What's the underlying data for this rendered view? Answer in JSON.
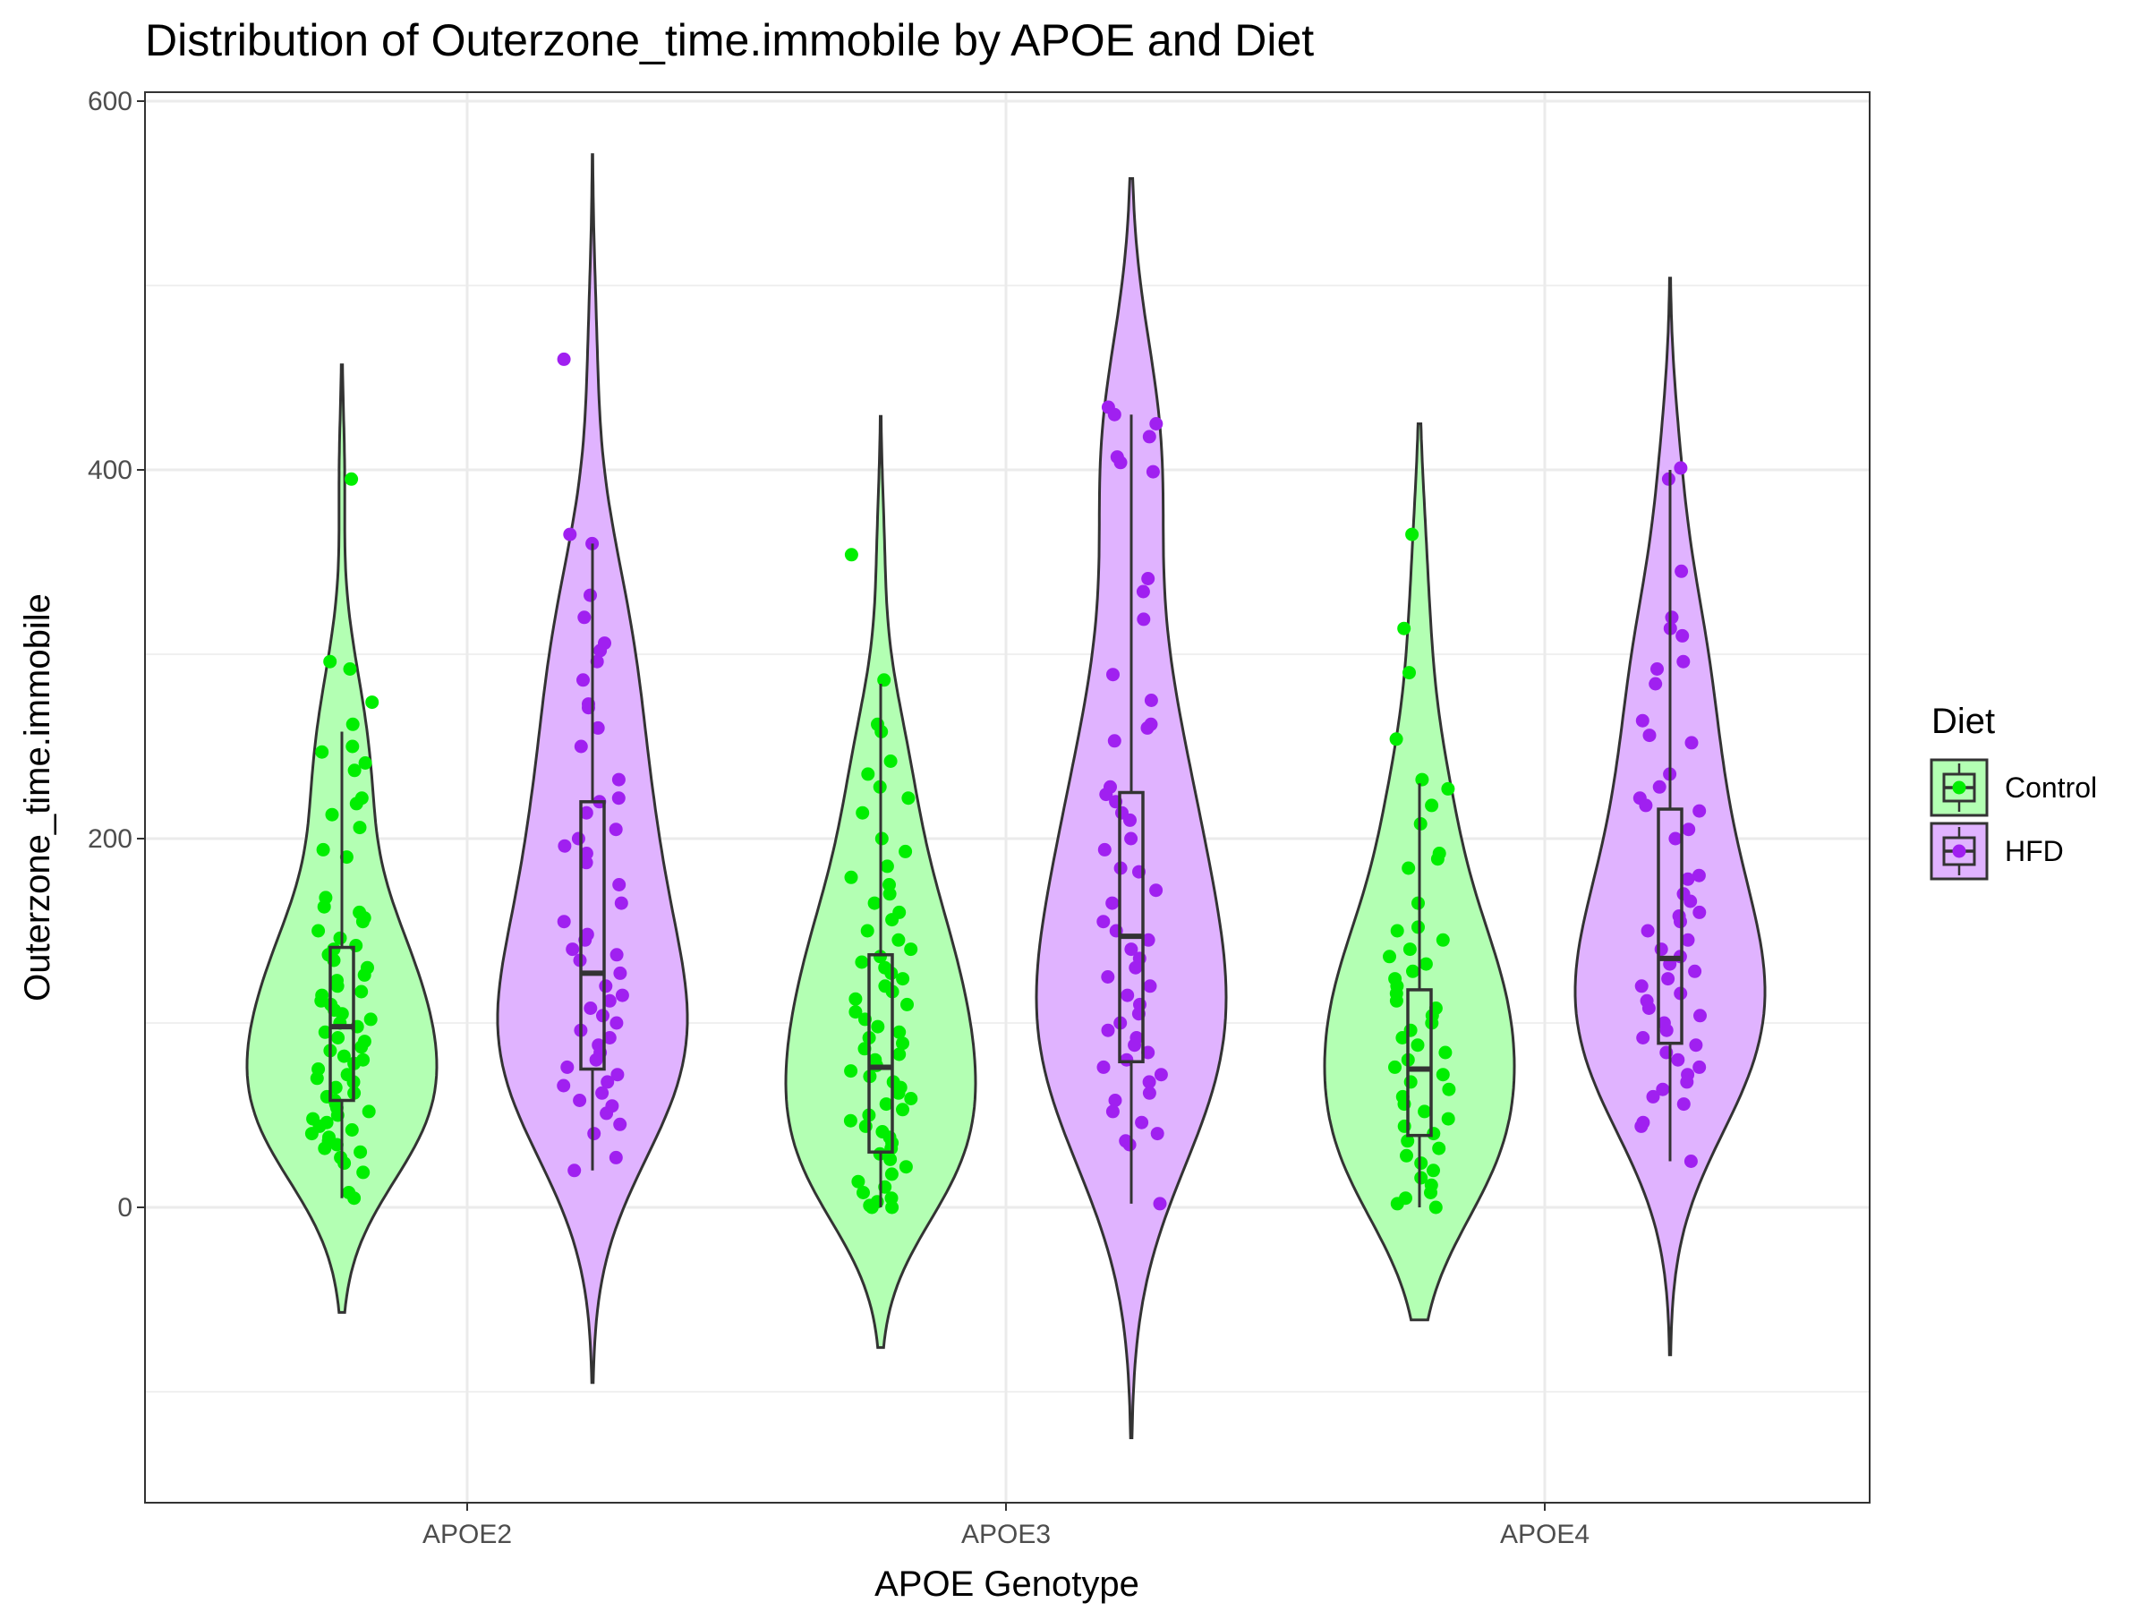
{
  "chart_data": {
    "type": "violin",
    "title": "Distribution of Outerzone_time.immobile by APOE and Diet",
    "xlabel": "APOE Genotype",
    "ylabel": "Outerzone_time.immobile",
    "categories": [
      "APOE2",
      "APOE3",
      "APOE4"
    ],
    "y_ticks": [
      0,
      200,
      400,
      600
    ],
    "ylim": [
      -160,
      605
    ],
    "grid": true,
    "legend": {
      "title": "Diet",
      "placement": "right"
    },
    "series": [
      {
        "name": "Control",
        "fill": "#b3ffb3",
        "point_color": "#00ee00",
        "groups": [
          {
            "category": "APOE2",
            "violin_range": [
              -57,
              457
            ],
            "box": {
              "q1": 58,
              "median": 98,
              "q3": 141,
              "whisker_low": 5,
              "whisker_high": 258
            },
            "points": [
              395,
              296,
              292,
              274,
              262,
              250,
              247,
              241,
              237,
              222,
              219,
              213,
              206,
              194,
              190,
              168,
              163,
              160,
              157,
              155,
              150,
              146,
              142,
              140,
              137,
              134,
              130,
              126,
              123,
              120,
              117,
              115,
              112,
              110,
              107,
              105,
              102,
              100,
              98,
              95,
              92,
              90,
              87,
              85,
              82,
              80,
              78,
              75,
              72,
              70,
              68,
              65,
              62,
              60,
              58,
              56,
              54,
              52,
              50,
              48,
              46,
              44,
              42,
              40,
              38,
              36,
              34,
              32,
              30,
              27,
              24,
              19,
              8,
              5
            ]
          },
          {
            "category": "APOE3",
            "violin_range": [
              -76,
              429
            ],
            "box": {
              "q1": 30,
              "median": 76,
              "q3": 137,
              "whisker_low": 0,
              "whisker_high": 284
            },
            "points": [
              354,
              286,
              262,
              258,
              242,
              235,
              228,
              222,
              214,
              200,
              193,
              185,
              179,
              175,
              170,
              165,
              160,
              156,
              150,
              145,
              140,
              136,
              133,
              130,
              127,
              124,
              120,
              117,
              113,
              110,
              106,
              102,
              98,
              95,
              92,
              89,
              86,
              83,
              80,
              77,
              74,
              71,
              68,
              65,
              62,
              59,
              56,
              53,
              50,
              47,
              44,
              41,
              38,
              35,
              32,
              29,
              26,
              22,
              18,
              14,
              11,
              8,
              5,
              3,
              1,
              0,
              0
            ]
          },
          {
            "category": "APOE4",
            "violin_range": [
              -61,
              425
            ],
            "box": {
              "q1": 39,
              "median": 75,
              "q3": 118,
              "whisker_low": 0,
              "whisker_high": 230
            },
            "points": [
              365,
              314,
              290,
              254,
              232,
              227,
              218,
              208,
              192,
              189,
              184,
              165,
              152,
              150,
              145,
              140,
              136,
              132,
              128,
              124,
              120,
              116,
              112,
              108,
              104,
              100,
              96,
              92,
              88,
              84,
              80,
              76,
              72,
              68,
              64,
              60,
              56,
              52,
              48,
              44,
              40,
              36,
              32,
              28,
              24,
              20,
              16,
              12,
              8,
              5,
              2,
              0
            ]
          }
        ]
      },
      {
        "name": "HFD",
        "fill": "#e0b3ff",
        "point_color": "#a020f0",
        "groups": [
          {
            "category": "APOE2",
            "violin_range": [
              -95,
              571
            ],
            "box": {
              "q1": 75,
              "median": 127,
              "q3": 220,
              "whisker_low": 20,
              "whisker_high": 360
            },
            "points": [
              460,
              365,
              360,
              332,
              320,
              306,
              302,
              296,
              286,
              273,
              271,
              260,
              250,
              232,
              222,
              220,
              214,
              205,
              200,
              196,
              192,
              187,
              175,
              165,
              155,
              148,
              145,
              140,
              137,
              134,
              127,
              120,
              115,
              112,
              108,
              104,
              100,
              96,
              92,
              88,
              84,
              80,
              76,
              72,
              68,
              66,
              62,
              58,
              55,
              51,
              45,
              40,
              27,
              20
            ]
          },
          {
            "category": "APOE3",
            "violin_range": [
              -125,
              558
            ],
            "box": {
              "q1": 79,
              "median": 147,
              "q3": 225,
              "whisker_low": 2,
              "whisker_high": 430
            },
            "points": [
              434,
              430,
              425,
              418,
              407,
              404,
              399,
              341,
              334,
              319,
              289,
              275,
              262,
              260,
              253,
              228,
              224,
              220,
              214,
              210,
              200,
              194,
              184,
              182,
              172,
              165,
              155,
              150,
              145,
              140,
              135,
              130,
              125,
              120,
              115,
              110,
              105,
              100,
              96,
              92,
              88,
              84,
              80,
              76,
              72,
              68,
              62,
              58,
              52,
              46,
              40,
              36,
              34,
              2
            ]
          },
          {
            "category": "APOE4",
            "violin_range": [
              -80,
              504
            ],
            "box": {
              "q1": 89,
              "median": 135,
              "q3": 216,
              "whisker_low": 25,
              "whisker_high": 400
            },
            "points": [
              401,
              395,
              345,
              320,
              314,
              310,
              296,
              292,
              284,
              264,
              256,
              252,
              235,
              228,
              222,
              218,
              215,
              205,
              200,
              180,
              178,
              170,
              166,
              160,
              158,
              155,
              150,
              145,
              140,
              136,
              132,
              128,
              124,
              120,
              116,
              112,
              108,
              104,
              100,
              96,
              92,
              88,
              84,
              80,
              76,
              72,
              68,
              64,
              60,
              56,
              46,
              44,
              25
            ]
          }
        ]
      }
    ]
  }
}
